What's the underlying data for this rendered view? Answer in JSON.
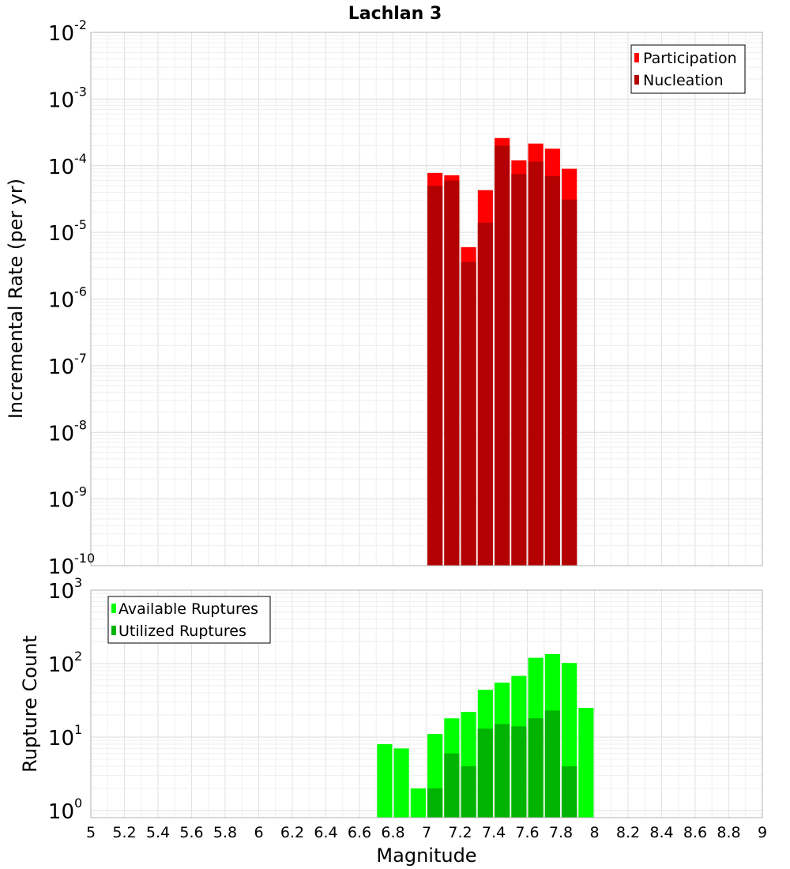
{
  "chart_data": [
    {
      "type": "bar",
      "title": "Lachlan 3",
      "xlabel": "",
      "ylabel": "Incremental Rate (per yr)",
      "yscale": "log",
      "ylim": [
        1e-10,
        0.01
      ],
      "xlim": [
        5,
        9
      ],
      "legend_position": "top-right",
      "y_ticks": [
        {
          "exp": "-10",
          "value": 1e-10
        },
        {
          "exp": "-9",
          "value": 1e-09
        },
        {
          "exp": "-8",
          "value": 1e-08
        },
        {
          "exp": "-7",
          "value": 1e-07
        },
        {
          "exp": "-6",
          "value": 1e-06
        },
        {
          "exp": "-5",
          "value": 1e-05
        },
        {
          "exp": "-4",
          "value": 0.0001
        },
        {
          "exp": "-3",
          "value": 0.001
        },
        {
          "exp": "-2",
          "value": 0.01
        }
      ],
      "x": [
        7.05,
        7.15,
        7.25,
        7.35,
        7.45,
        7.55,
        7.65,
        7.75,
        7.85
      ],
      "series": [
        {
          "name": "Participation",
          "color": "#ff0000",
          "values": [
            7.8e-05,
            7.2e-05,
            6e-06,
            4.3e-05,
            0.00026,
            0.00012,
            0.000215,
            0.00018,
            9e-05
          ]
        },
        {
          "name": "Nucleation",
          "color": "#b30000",
          "values": [
            5e-05,
            6e-05,
            3.6e-06,
            1.4e-05,
            0.0002,
            7.5e-05,
            0.000115,
            7e-05,
            3.1e-05
          ]
        }
      ]
    },
    {
      "type": "bar",
      "title": "",
      "xlabel": "Magnitude",
      "ylabel": "Rupture Count",
      "yscale": "log",
      "ylim": [
        0.8,
        1000
      ],
      "xlim": [
        5,
        9
      ],
      "legend_position": "top-left",
      "y_ticks": [
        {
          "exp": "0",
          "value": 1
        },
        {
          "exp": "1",
          "value": 10
        },
        {
          "exp": "2",
          "value": 100
        },
        {
          "exp": "3",
          "value": 1000
        }
      ],
      "x_ticks": [
        "5",
        "5.2",
        "5.4",
        "5.6",
        "5.8",
        "6",
        "6.2",
        "6.4",
        "6.6",
        "6.8",
        "7",
        "7.2",
        "7.4",
        "7.6",
        "7.8",
        "8",
        "8.2",
        "8.4",
        "8.6",
        "8.8",
        "9"
      ],
      "x": [
        6.75,
        6.85,
        6.95,
        7.05,
        7.15,
        7.25,
        7.35,
        7.45,
        7.55,
        7.65,
        7.75,
        7.85,
        7.95
      ],
      "series": [
        {
          "name": "Available Ruptures",
          "color": "#00ff00",
          "values": [
            8,
            7,
            2,
            11,
            18,
            22,
            44,
            55,
            68,
            120,
            135,
            102,
            25
          ]
        },
        {
          "name": "Utilized Ruptures",
          "color": "#00b300",
          "values": [
            0,
            0,
            0,
            2,
            6,
            4,
            13,
            15,
            14,
            18,
            23,
            4,
            0
          ]
        }
      ]
    }
  ]
}
